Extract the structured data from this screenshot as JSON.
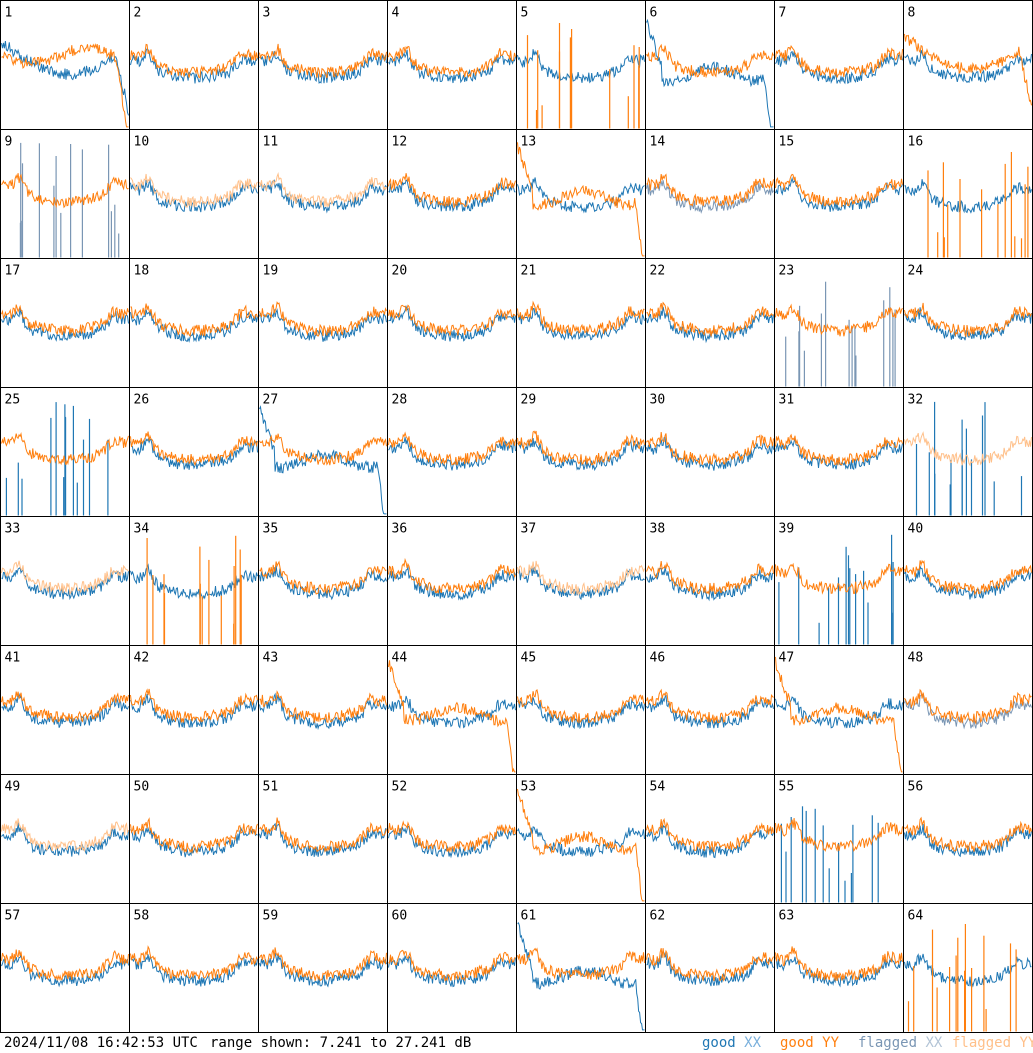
{
  "chart_data": {
    "type": "line",
    "panel_count": 64,
    "panel_labels": [
      "1",
      "2",
      "3",
      "4",
      "5",
      "6",
      "7",
      "8",
      "9",
      "10",
      "11",
      "12",
      "13",
      "14",
      "15",
      "16",
      "17",
      "18",
      "19",
      "20",
      "21",
      "22",
      "23",
      "24",
      "25",
      "26",
      "27",
      "28",
      "29",
      "30",
      "31",
      "32",
      "33",
      "34",
      "35",
      "36",
      "37",
      "38",
      "39",
      "40",
      "41",
      "42",
      "43",
      "44",
      "45",
      "46",
      "47",
      "48",
      "49",
      "50",
      "51",
      "52",
      "53",
      "54",
      "55",
      "56",
      "57",
      "58",
      "59",
      "60",
      "61",
      "62",
      "63",
      "64"
    ],
    "ylim": [
      7.241,
      27.241
    ],
    "yunit": "dB",
    "legend_position": "bottom-right",
    "series": [
      {
        "name": "good XX",
        "color": "#1f77b4"
      },
      {
        "name": "good YY",
        "color": "#ff7f0e"
      },
      {
        "name": "flagged XX",
        "color": "#7a96b4"
      },
      {
        "name": "flagged YY",
        "color": "#ffc08a"
      }
    ],
    "panel_styles": {
      "1": {
        "xx": "b1",
        "yy": "b2"
      },
      "2": {
        "xx": "u",
        "yy": "u"
      },
      "3": {
        "xx": "u",
        "yy": "u"
      },
      "4": {
        "xx": "u",
        "yy": "u"
      },
      "5": {
        "xx": "u",
        "yy": "s"
      },
      "6": {
        "xx": "d",
        "yy": "u"
      },
      "7": {
        "xx": "u",
        "yy": "u"
      },
      "8": {
        "xx": "u",
        "yy": "b1"
      },
      "9": {
        "xx": "s",
        "yy": "u"
      },
      "10": {
        "xx": "u",
        "yy": "u"
      },
      "11": {
        "xx": "u",
        "yy": "u"
      },
      "12": {
        "xx": "u",
        "yy": "u"
      },
      "13": {
        "xx": "u",
        "yy": "d"
      },
      "14": {
        "xx": "u",
        "yy": "u"
      },
      "15": {
        "xx": "u",
        "yy": "u"
      },
      "16": {
        "xx": "u",
        "yy": "s"
      },
      "17": {
        "xx": "u",
        "yy": "u"
      },
      "18": {
        "xx": "u",
        "yy": "u"
      },
      "19": {
        "xx": "u",
        "yy": "u"
      },
      "20": {
        "xx": "u",
        "yy": "u"
      },
      "21": {
        "xx": "u",
        "yy": "u"
      },
      "22": {
        "xx": "u",
        "yy": "u"
      },
      "23": {
        "xx": "s",
        "yy": "u"
      },
      "24": {
        "xx": "u",
        "yy": "u"
      },
      "25": {
        "xx": "s",
        "yy": "u"
      },
      "26": {
        "xx": "u",
        "yy": "u"
      },
      "27": {
        "xx": "d",
        "yy": "u"
      },
      "28": {
        "xx": "u",
        "yy": "u"
      },
      "29": {
        "xx": "u",
        "yy": "u"
      },
      "30": {
        "xx": "u",
        "yy": "u"
      },
      "31": {
        "xx": "u",
        "yy": "u"
      },
      "32": {
        "xx": "s",
        "yy": "u"
      },
      "33": {
        "xx": "u",
        "yy": "u"
      },
      "34": {
        "xx": "u",
        "yy": "s"
      },
      "35": {
        "xx": "u",
        "yy": "u"
      },
      "36": {
        "xx": "u",
        "yy": "u"
      },
      "37": {
        "xx": "u",
        "yy": "u"
      },
      "38": {
        "xx": "u",
        "yy": "u"
      },
      "39": {
        "xx": "s",
        "yy": "u"
      },
      "40": {
        "xx": "u",
        "yy": "u"
      },
      "41": {
        "xx": "u",
        "yy": "u"
      },
      "42": {
        "xx": "u",
        "yy": "u"
      },
      "43": {
        "xx": "u",
        "yy": "u"
      },
      "44": {
        "xx": "u",
        "yy": "d"
      },
      "45": {
        "xx": "u",
        "yy": "u"
      },
      "46": {
        "xx": "u",
        "yy": "u"
      },
      "47": {
        "xx": "u",
        "yy": "d"
      },
      "48": {
        "xx": "u",
        "yy": "u"
      },
      "49": {
        "xx": "u",
        "yy": "u"
      },
      "50": {
        "xx": "u",
        "yy": "u"
      },
      "51": {
        "xx": "u",
        "yy": "u"
      },
      "52": {
        "xx": "u",
        "yy": "u"
      },
      "53": {
        "xx": "u",
        "yy": "d"
      },
      "54": {
        "xx": "u",
        "yy": "u"
      },
      "55": {
        "xx": "s",
        "yy": "u"
      },
      "56": {
        "xx": "u",
        "yy": "u"
      },
      "57": {
        "xx": "u",
        "yy": "u"
      },
      "58": {
        "xx": "u",
        "yy": "u"
      },
      "59": {
        "xx": "u",
        "yy": "u"
      },
      "60": {
        "xx": "u",
        "yy": "u"
      },
      "61": {
        "xx": "d",
        "yy": "u"
      },
      "62": {
        "xx": "u",
        "yy": "u"
      },
      "63": {
        "xx": "u",
        "yy": "u"
      },
      "64": {
        "xx": "u",
        "yy": "s"
      }
    },
    "flagged": {
      "xx": [
        "9",
        "14",
        "23",
        "48"
      ],
      "yy": [
        "10",
        "11",
        "32",
        "33",
        "37",
        "49"
      ]
    }
  },
  "footer": {
    "timestamp": "2024/11/08 16:42:53 UTC",
    "range_text": "range shown: 7.241 to 27.241 dB",
    "legend": {
      "good_xx": {
        "word": "good",
        "pol": "XX"
      },
      "good_yy": {
        "word": "good",
        "pol": "YY"
      },
      "flagged_xx": {
        "word": "flagged",
        "pol": "XX"
      },
      "flagged_yy": {
        "word": "flagged",
        "pol": "YY"
      }
    }
  }
}
